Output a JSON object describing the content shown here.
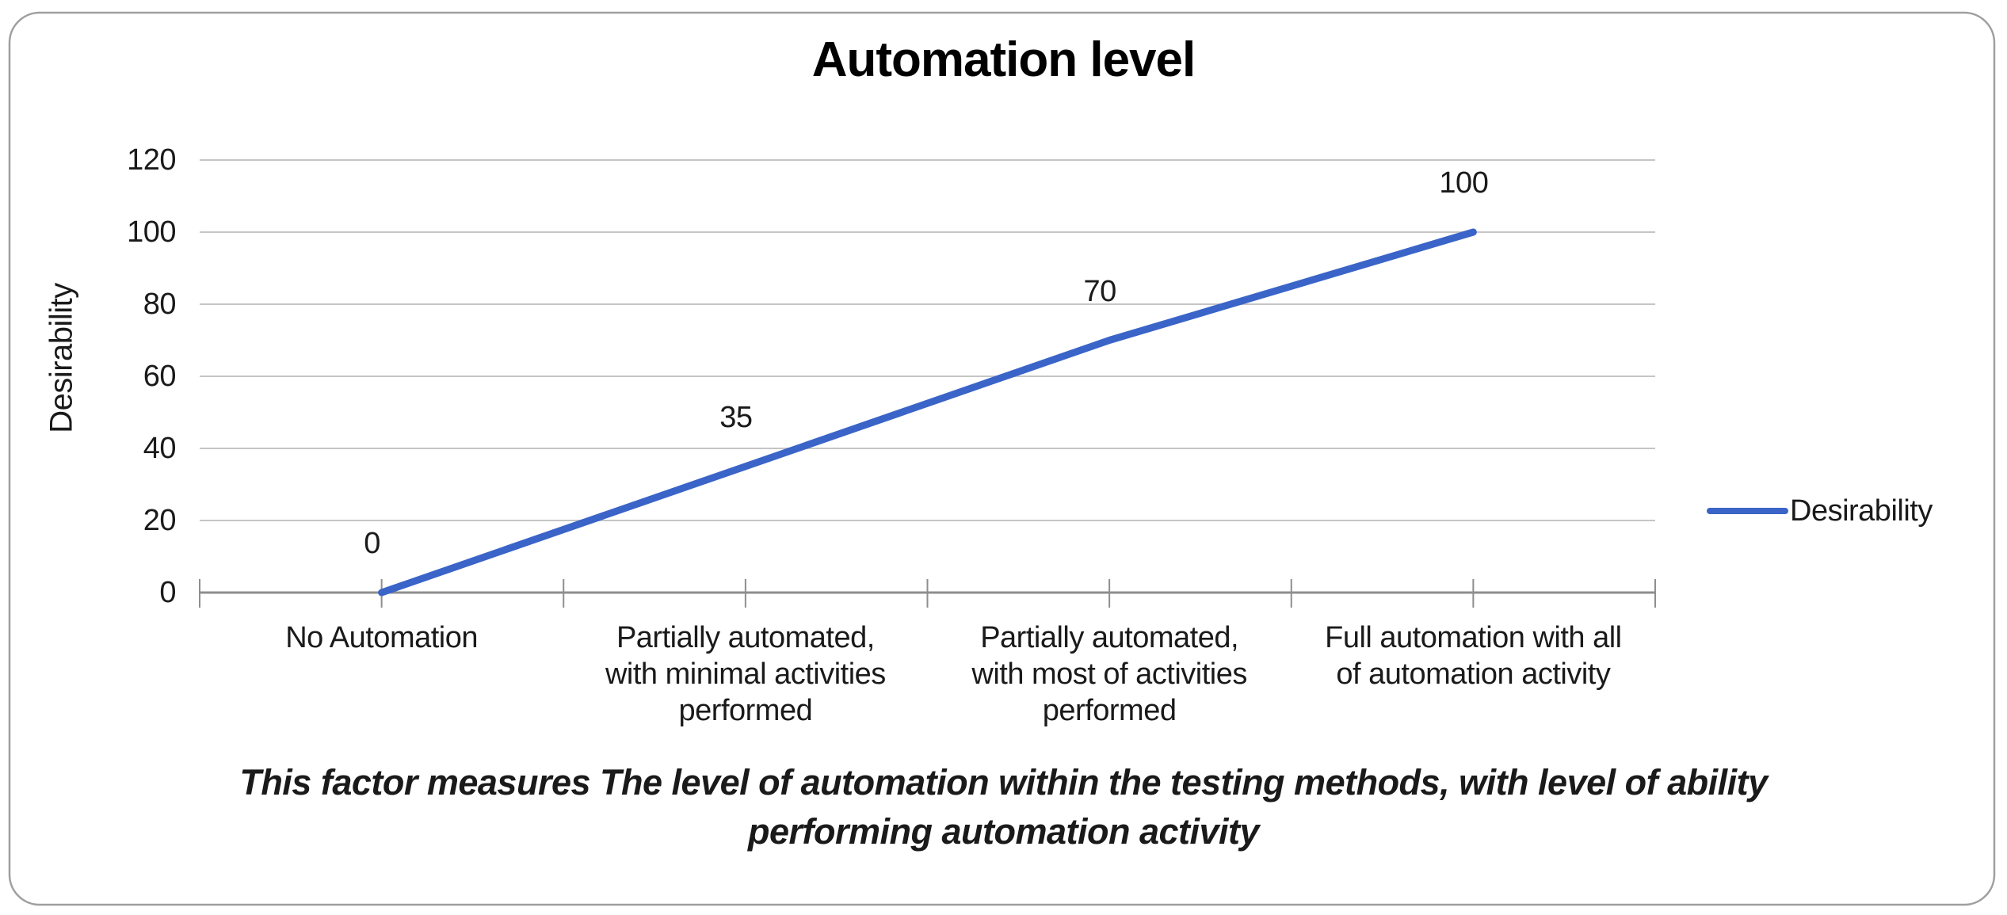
{
  "chart_data": {
    "type": "line",
    "title": "Automation level",
    "xlabel": "",
    "ylabel": "Desirability",
    "ylim": [
      0,
      120
    ],
    "yticks": [
      0,
      20,
      40,
      60,
      80,
      100,
      120
    ],
    "grid": true,
    "legend_position": "right",
    "legend_entries": [
      "Desirability"
    ],
    "categories": [
      "No Automation",
      "Partially automated, with minimal activities performed",
      "Partially automated, with most of activities performed",
      "Full automation with all of automation activity"
    ],
    "category_label_lines": [
      [
        "No Automation"
      ],
      [
        "Partially automated,",
        "with minimal activities",
        "performed"
      ],
      [
        "Partially automated,",
        "with most of activities",
        "performed"
      ],
      [
        "Full automation with all",
        "of automation activity"
      ]
    ],
    "series": [
      {
        "name": "Desirability",
        "values": [
          0,
          35,
          70,
          100
        ],
        "color": "#3A64C8"
      }
    ],
    "data_labels": [
      "0",
      "35",
      "70",
      "100"
    ],
    "caption_lines": [
      "This factor measures The level of automation within the testing methods, with level of ability",
      "performing automation activity"
    ]
  },
  "colors": {
    "series_blue": "#3A64C8",
    "gridline": "#C5C5C5",
    "axis": "#8E8E8E",
    "border": "#9F9F9F",
    "text": "#1A1A1A",
    "title_text": "#000000"
  }
}
